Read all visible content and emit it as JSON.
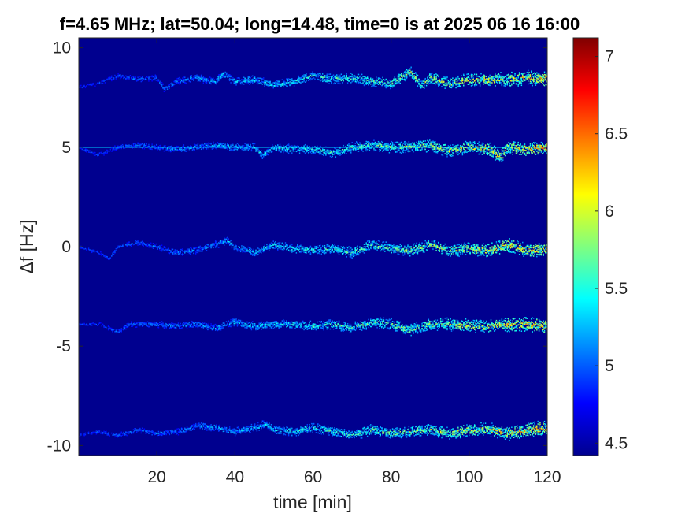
{
  "chart_data": {
    "type": "heatmap",
    "title": "f=4.65 MHz;  lat=50.04; long=14.48, time=0 is at 2025 06 16 16:00",
    "xlabel": "time [min]",
    "ylabel": "Δf [Hz]",
    "xlim": [
      0,
      120
    ],
    "ylim": [
      -10.5,
      10.5
    ],
    "xticks": [
      20,
      40,
      60,
      80,
      100,
      120
    ],
    "yticks": [
      10,
      5,
      0,
      -5,
      -10
    ],
    "colorbar": {
      "ticks": [
        4.5,
        5,
        5.5,
        6,
        6.5,
        7
      ],
      "range": [
        4.42,
        7.12
      ],
      "colormap": "jet"
    },
    "background_value": 4.42,
    "traces": [
      {
        "base_offset": 8.2,
        "points": [
          [
            0,
            8.0
          ],
          [
            5,
            8.2
          ],
          [
            10,
            8.6
          ],
          [
            15,
            8.4
          ],
          [
            20,
            8.5
          ],
          [
            22,
            7.9
          ],
          [
            25,
            8.3
          ],
          [
            30,
            8.5
          ],
          [
            35,
            8.3
          ],
          [
            37,
            8.7
          ],
          [
            40,
            8.3
          ],
          [
            45,
            8.4
          ],
          [
            50,
            8.1
          ],
          [
            55,
            8.3
          ],
          [
            60,
            8.6
          ],
          [
            65,
            8.4
          ],
          [
            70,
            8.5
          ],
          [
            75,
            8.3
          ],
          [
            80,
            8.2
          ],
          [
            85,
            8.8
          ],
          [
            88,
            8.1
          ],
          [
            90,
            8.5
          ],
          [
            95,
            8.2
          ],
          [
            100,
            8.4
          ],
          [
            105,
            8.4
          ],
          [
            110,
            8.4
          ],
          [
            115,
            8.5
          ],
          [
            120,
            8.4
          ]
        ]
      },
      {
        "base_offset": 5.0,
        "points": [
          [
            0,
            5.0
          ],
          [
            5,
            4.6
          ],
          [
            10,
            5.0
          ],
          [
            15,
            5.1
          ],
          [
            20,
            5.0
          ],
          [
            25,
            4.9
          ],
          [
            30,
            5.0
          ],
          [
            35,
            5.1
          ],
          [
            40,
            5.0
          ],
          [
            45,
            5.0
          ],
          [
            47,
            4.6
          ],
          [
            50,
            5.0
          ],
          [
            55,
            4.9
          ],
          [
            60,
            4.9
          ],
          [
            65,
            4.7
          ],
          [
            70,
            5.0
          ],
          [
            75,
            5.1
          ],
          [
            80,
            5.0
          ],
          [
            85,
            5.0
          ],
          [
            90,
            5.1
          ],
          [
            95,
            4.8
          ],
          [
            100,
            5.0
          ],
          [
            105,
            4.9
          ],
          [
            108,
            4.5
          ],
          [
            110,
            5.0
          ],
          [
            115,
            4.9
          ],
          [
            120,
            5.0
          ]
        ]
      },
      {
        "base_offset": 0.0,
        "points": [
          [
            0,
            0.0
          ],
          [
            5,
            -0.3
          ],
          [
            8,
            -0.6
          ],
          [
            10,
            0.0
          ],
          [
            15,
            0.2
          ],
          [
            20,
            0.0
          ],
          [
            25,
            -0.3
          ],
          [
            30,
            -0.2
          ],
          [
            35,
            0.1
          ],
          [
            38,
            0.3
          ],
          [
            40,
            0.0
          ],
          [
            45,
            -0.3
          ],
          [
            50,
            0.1
          ],
          [
            55,
            -0.1
          ],
          [
            60,
            -0.2
          ],
          [
            65,
            -0.1
          ],
          [
            70,
            -0.3
          ],
          [
            75,
            0.1
          ],
          [
            80,
            -0.1
          ],
          [
            85,
            -0.2
          ],
          [
            90,
            0.1
          ],
          [
            95,
            -0.2
          ],
          [
            100,
            -0.1
          ],
          [
            105,
            -0.2
          ],
          [
            110,
            0.1
          ],
          [
            115,
            -0.2
          ],
          [
            120,
            -0.1
          ]
        ]
      },
      {
        "base_offset": -4.0,
        "points": [
          [
            0,
            -3.9
          ],
          [
            5,
            -3.9
          ],
          [
            10,
            -4.3
          ],
          [
            13,
            -3.9
          ],
          [
            20,
            -3.9
          ],
          [
            25,
            -4.0
          ],
          [
            30,
            -3.9
          ],
          [
            35,
            -4.1
          ],
          [
            40,
            -3.8
          ],
          [
            45,
            -4.0
          ],
          [
            50,
            -3.9
          ],
          [
            55,
            -3.9
          ],
          [
            60,
            -4.0
          ],
          [
            65,
            -3.9
          ],
          [
            70,
            -4.1
          ],
          [
            75,
            -3.8
          ],
          [
            80,
            -3.9
          ],
          [
            85,
            -4.2
          ],
          [
            90,
            -3.9
          ],
          [
            95,
            -3.9
          ],
          [
            100,
            -4.0
          ],
          [
            105,
            -4.0
          ],
          [
            110,
            -3.9
          ],
          [
            115,
            -3.9
          ],
          [
            120,
            -4.0
          ]
        ]
      },
      {
        "base_offset": -9.4,
        "points": [
          [
            0,
            -9.5
          ],
          [
            5,
            -9.3
          ],
          [
            10,
            -9.5
          ],
          [
            15,
            -9.2
          ],
          [
            20,
            -9.4
          ],
          [
            25,
            -9.3
          ],
          [
            28,
            -9.2
          ],
          [
            30,
            -9.0
          ],
          [
            35,
            -9.1
          ],
          [
            40,
            -9.3
          ],
          [
            45,
            -9.1
          ],
          [
            48,
            -8.9
          ],
          [
            50,
            -9.2
          ],
          [
            55,
            -9.3
          ],
          [
            60,
            -9.1
          ],
          [
            65,
            -9.3
          ],
          [
            70,
            -9.5
          ],
          [
            75,
            -9.2
          ],
          [
            80,
            -9.4
          ],
          [
            85,
            -9.3
          ],
          [
            90,
            -9.2
          ],
          [
            95,
            -9.4
          ],
          [
            100,
            -9.2
          ],
          [
            105,
            -9.2
          ],
          [
            110,
            -9.4
          ],
          [
            115,
            -9.2
          ],
          [
            120,
            -9.1
          ]
        ]
      }
    ],
    "intensity_profile": [
      [
        0,
        5.0
      ],
      [
        30,
        5.4
      ],
      [
        60,
        5.8
      ],
      [
        90,
        6.2
      ],
      [
        120,
        6.7
      ]
    ],
    "continuous_carrier": {
      "y": 5.0,
      "value": 5.3,
      "x_range": [
        0,
        120
      ]
    }
  }
}
